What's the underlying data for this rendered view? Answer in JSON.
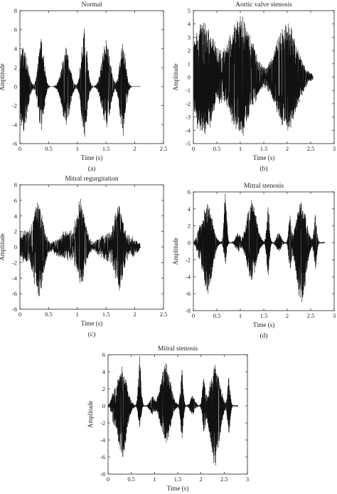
{
  "chart_data": [
    {
      "type": "line",
      "panel": "a",
      "caption": "(a)",
      "title": "Normal",
      "xlabel": "Time (s)",
      "ylabel": "Amplitude",
      "xlim": [
        0,
        2.5
      ],
      "ylim": [
        -6,
        8
      ],
      "xticks": [
        "0",
        "0.5",
        "1",
        "1.5",
        "2",
        "2.5"
      ],
      "yticks": [
        "-6",
        "-4",
        "-2",
        "0",
        "2",
        "4",
        "6",
        "8"
      ],
      "signal_end": 2.1,
      "bursts": [
        {
          "t": 0.06,
          "w": 0.07,
          "max": 4.1,
          "min": -4.7
        },
        {
          "t": 0.37,
          "w": 0.05,
          "max": 5.0,
          "min": -4.6
        },
        {
          "t": 0.8,
          "w": 0.07,
          "max": 4.1,
          "min": -4.0
        },
        {
          "t": 1.12,
          "w": 0.05,
          "max": 6.1,
          "min": -5.3
        },
        {
          "t": 1.5,
          "w": 0.07,
          "max": 4.9,
          "min": -4.3
        },
        {
          "t": 1.79,
          "w": 0.05,
          "max": 4.5,
          "min": -5.2
        }
      ],
      "noise": 0.0
    },
    {
      "type": "line",
      "panel": "b",
      "caption": "(b)",
      "title": "Aortic valve stenosis",
      "xlabel": "Time (s)",
      "ylabel": "Amplitude",
      "xlim": [
        0,
        3
      ],
      "ylim": [
        -5,
        5
      ],
      "xticks": [
        "0",
        "0.5",
        "1",
        "1.5",
        "2",
        "2.5",
        "3"
      ],
      "yticks": [
        "-5",
        "-4",
        "-3",
        "-2",
        "-1",
        "0",
        "1",
        "2",
        "3",
        "4",
        "5"
      ],
      "signal_end": 2.55,
      "bursts": [
        {
          "t": 0.22,
          "w": 0.22,
          "max": 4.1,
          "min": -4.3
        },
        {
          "t": 1.0,
          "w": 0.24,
          "max": 4.6,
          "min": -4.2
        },
        {
          "t": 1.98,
          "w": 0.22,
          "max": 3.8,
          "min": -4.0
        }
      ],
      "noise": 0.15
    },
    {
      "type": "line",
      "panel": "c",
      "caption": "(c)",
      "title": "Mitral regurgitation",
      "xlabel": "Time (s)",
      "ylabel": "Amplitude",
      "xlim": [
        0,
        2.5
      ],
      "ylim": [
        -8,
        8
      ],
      "xticks": [
        "0",
        "0.5",
        "1",
        "1.5",
        "2",
        "2.5"
      ],
      "yticks": [
        "-8",
        "-6",
        "-4",
        "-2",
        "0",
        "2",
        "4",
        "6",
        "8"
      ],
      "signal_end": 2.1,
      "bursts": [
        {
          "t": 0.1,
          "w": 0.15,
          "max": 2.1,
          "min": -1.8
        },
        {
          "t": 0.33,
          "w": 0.08,
          "max": 5.4,
          "min": -6.3
        },
        {
          "t": 0.8,
          "w": 0.15,
          "max": 1.6,
          "min": -1.5
        },
        {
          "t": 1.06,
          "w": 0.08,
          "max": 6.2,
          "min": -4.4
        },
        {
          "t": 1.52,
          "w": 0.15,
          "max": 1.5,
          "min": -1.4
        },
        {
          "t": 1.73,
          "w": 0.08,
          "max": 5.2,
          "min": -5.2
        },
        {
          "t": 1.95,
          "w": 0.1,
          "max": 0.8,
          "min": -0.8
        }
      ],
      "noise": 0.2
    },
    {
      "type": "line",
      "panel": "d",
      "caption": "(d)",
      "title": "Mitral stenosis",
      "xlabel": "Time (s)",
      "ylabel": "Amplitude",
      "xlim": [
        0,
        3
      ],
      "ylim": [
        -8,
        6
      ],
      "xticks": [
        "0",
        "0.5",
        "1",
        "1.5",
        "2",
        "2.5",
        "3"
      ],
      "yticks": [
        "-8",
        "-6",
        "-4",
        "-2",
        "0",
        "2",
        "4",
        "6"
      ],
      "signal_end": 2.8,
      "bursts": [
        {
          "t": 0.12,
          "w": 0.05,
          "max": 1.2,
          "min": -1.1
        },
        {
          "t": 0.3,
          "w": 0.1,
          "max": 4.6,
          "min": -6.0
        },
        {
          "t": 0.68,
          "w": 0.03,
          "max": 5.8,
          "min": -2.5
        },
        {
          "t": 0.95,
          "w": 0.05,
          "max": 1.1,
          "min": -1.0
        },
        {
          "t": 1.24,
          "w": 0.1,
          "max": 5.0,
          "min": -4.3
        },
        {
          "t": 1.59,
          "w": 0.03,
          "max": 4.2,
          "min": -3.8
        },
        {
          "t": 1.82,
          "w": 0.05,
          "max": 1.1,
          "min": -1.0
        },
        {
          "t": 2.06,
          "w": 0.03,
          "max": 3.2,
          "min": -3.0
        },
        {
          "t": 2.3,
          "w": 0.1,
          "max": 4.8,
          "min": -7.0
        },
        {
          "t": 2.6,
          "w": 0.03,
          "max": 3.3,
          "min": -3.1
        }
      ],
      "noise": 0.05
    },
    {
      "type": "line",
      "panel": "e",
      "caption": "(e)",
      "title": "Mitral stenosis",
      "xlabel": "Time (s)",
      "ylabel": "Amplitude",
      "xlim": [
        0,
        3
      ],
      "ylim": [
        -8,
        6
      ],
      "xticks": [
        "0",
        "0.5",
        "1",
        "1.5",
        "2",
        "2.5",
        "3"
      ],
      "yticks": [
        "-8",
        "-6",
        "-4",
        "-2",
        "0",
        "2",
        "4",
        "6"
      ],
      "signal_end": 2.8,
      "bursts": [
        {
          "t": 0.12,
          "w": 0.05,
          "max": 1.2,
          "min": -1.1
        },
        {
          "t": 0.3,
          "w": 0.1,
          "max": 4.6,
          "min": -6.0
        },
        {
          "t": 0.68,
          "w": 0.03,
          "max": 5.8,
          "min": -2.5
        },
        {
          "t": 0.95,
          "w": 0.05,
          "max": 1.1,
          "min": -1.0
        },
        {
          "t": 1.24,
          "w": 0.1,
          "max": 5.0,
          "min": -4.3
        },
        {
          "t": 1.59,
          "w": 0.03,
          "max": 4.2,
          "min": -3.8
        },
        {
          "t": 1.82,
          "w": 0.05,
          "max": 1.1,
          "min": -1.0
        },
        {
          "t": 2.06,
          "w": 0.03,
          "max": 3.2,
          "min": -3.0
        },
        {
          "t": 2.3,
          "w": 0.1,
          "max": 4.8,
          "min": -7.0
        },
        {
          "t": 2.6,
          "w": 0.03,
          "max": 3.3,
          "min": -3.1
        }
      ],
      "noise": 0.05
    }
  ]
}
